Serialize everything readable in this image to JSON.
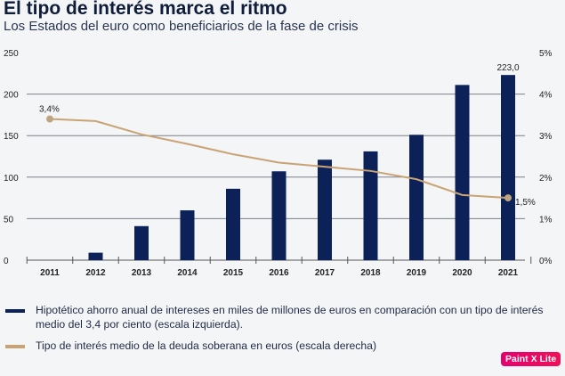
{
  "title": "El tipo de interés marca el ritmo",
  "subtitle": "Los Estados del euro como beneficiarios de la fase de crisis",
  "chart_data": {
    "type": "bar+line",
    "categories": [
      "2011",
      "2012",
      "2013",
      "2014",
      "2015",
      "2016",
      "2017",
      "2018",
      "2019",
      "2020",
      "2021"
    ],
    "series": [
      {
        "name": "Hipotético ahorro anual de intereses en miles de millones de euros en comparación con un tipo de interés medio del 3,4 por ciento (escala izquierda).",
        "type": "bar",
        "axis": "left",
        "color": "#0c2158",
        "values": [
          0,
          9,
          41,
          60,
          86,
          107,
          121,
          131,
          151,
          211,
          223
        ]
      },
      {
        "name": "Tipo de interés medio de la deuda soberana en euros (escala derecha)",
        "type": "line",
        "axis": "right",
        "color": "#c9a374",
        "values": [
          3.4,
          3.35,
          3.03,
          2.8,
          2.55,
          2.35,
          2.25,
          2.15,
          1.95,
          1.57,
          1.5
        ]
      }
    ],
    "data_labels": {
      "bar_last": "223,0",
      "line_first": "3,4%",
      "line_last": "1,5%"
    },
    "left_axis": {
      "ylim": [
        0,
        250
      ],
      "ticks": [
        "0",
        "50",
        "100",
        "150",
        "200",
        "250"
      ]
    },
    "right_axis": {
      "ylim": [
        0,
        5
      ],
      "ticks": [
        "0%",
        "1%",
        "2%",
        "3%",
        "4%",
        "5%"
      ]
    },
    "grid": true,
    "legend": "bottom"
  },
  "badge": "Paint X Lite"
}
